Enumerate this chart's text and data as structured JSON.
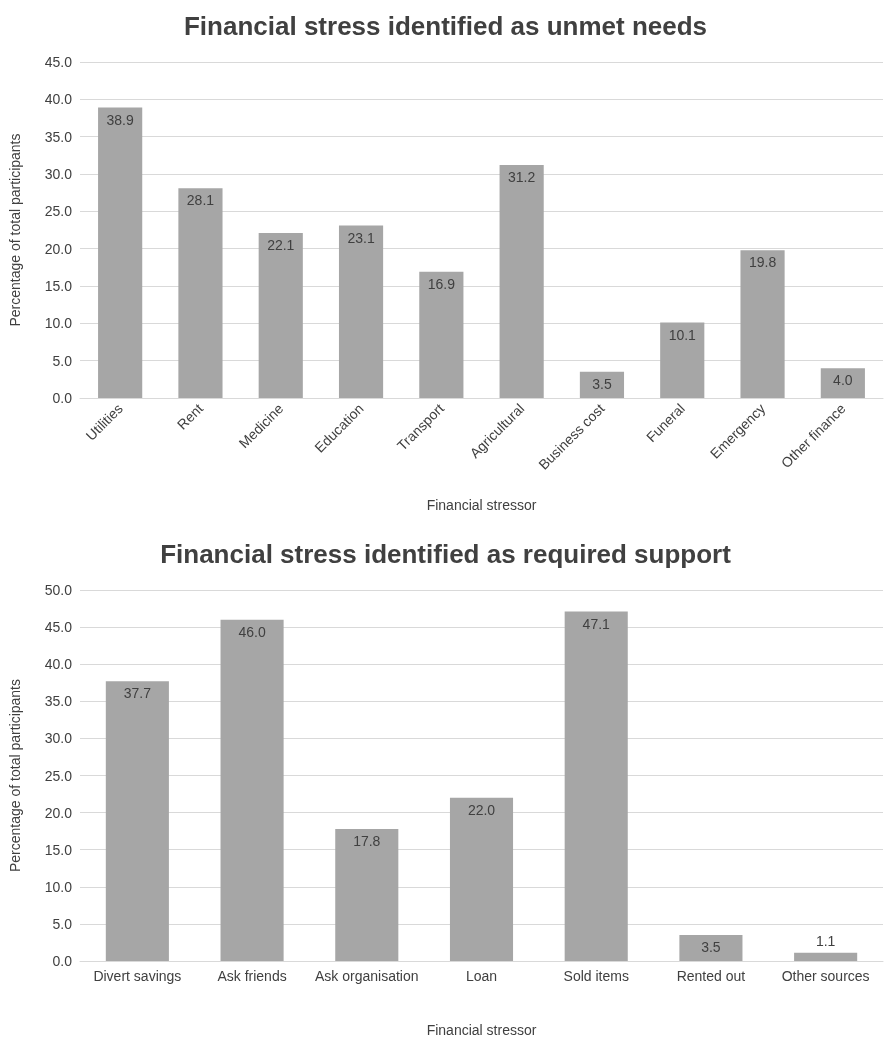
{
  "chart_data": [
    {
      "type": "bar",
      "title": "Financial stress identified as unmet needs",
      "xlabel": "Financial stressor",
      "ylabel": "Percentage of total participants",
      "categories": [
        "Utilities",
        "Rent",
        "Medicine",
        "Education",
        "Transport",
        "Agricultural",
        "Business cost",
        "Funeral",
        "Emergency",
        "Other finance"
      ],
      "values": [
        38.9,
        28.1,
        22.1,
        23.1,
        16.9,
        31.2,
        3.5,
        10.1,
        19.8,
        4.0
      ],
      "value_labels": [
        "38.9",
        "28.1",
        "22.1",
        "23.1",
        "16.9",
        "31.2",
        "3.5",
        "10.1",
        "19.8",
        "4.0"
      ],
      "color": "#a6a6a6",
      "ylim": [
        0,
        45
      ],
      "yticks": [
        {
          "value": 0,
          "label": "0.0"
        },
        {
          "value": 5,
          "label": "5.0"
        },
        {
          "value": 10,
          "label": "10.0"
        },
        {
          "value": 15,
          "label": "15.0"
        },
        {
          "value": 20,
          "label": "20.0"
        },
        {
          "value": 25,
          "label": "25.0"
        },
        {
          "value": 30,
          "label": "30.0"
        },
        {
          "value": 35,
          "label": "35.0"
        },
        {
          "value": 40,
          "label": "40.0"
        },
        {
          "value": 45,
          "label": "45.0"
        }
      ],
      "grid": "y"
    },
    {
      "type": "bar",
      "title": "Financial stress identified as required support",
      "xlabel": "Financial stressor",
      "ylabel": "Percentage of total participants",
      "categories": [
        "Divert savings",
        "Ask friends",
        "Ask organisation",
        "Loan",
        "Sold items",
        "Rented out",
        "Other sources"
      ],
      "values": [
        37.7,
        46.0,
        17.8,
        22.0,
        47.1,
        3.5,
        1.1
      ],
      "value_labels": [
        "37.7",
        "46.0",
        "17.8",
        "22.0",
        "47.1",
        "3.5",
        "1.1"
      ],
      "color": "#a6a6a6",
      "ylim": [
        0,
        50
      ],
      "yticks": [
        {
          "value": 0,
          "label": "0.0"
        },
        {
          "value": 5,
          "label": "5.0"
        },
        {
          "value": 10,
          "label": "10.0"
        },
        {
          "value": 15,
          "label": "15.0"
        },
        {
          "value": 20,
          "label": "20.0"
        },
        {
          "value": 25,
          "label": "25.0"
        },
        {
          "value": 30,
          "label": "30.0"
        },
        {
          "value": 35,
          "label": "35.0"
        },
        {
          "value": 40,
          "label": "40.0"
        },
        {
          "value": 45,
          "label": "45.0"
        },
        {
          "value": 50,
          "label": "50.0"
        }
      ],
      "grid": "y"
    }
  ]
}
